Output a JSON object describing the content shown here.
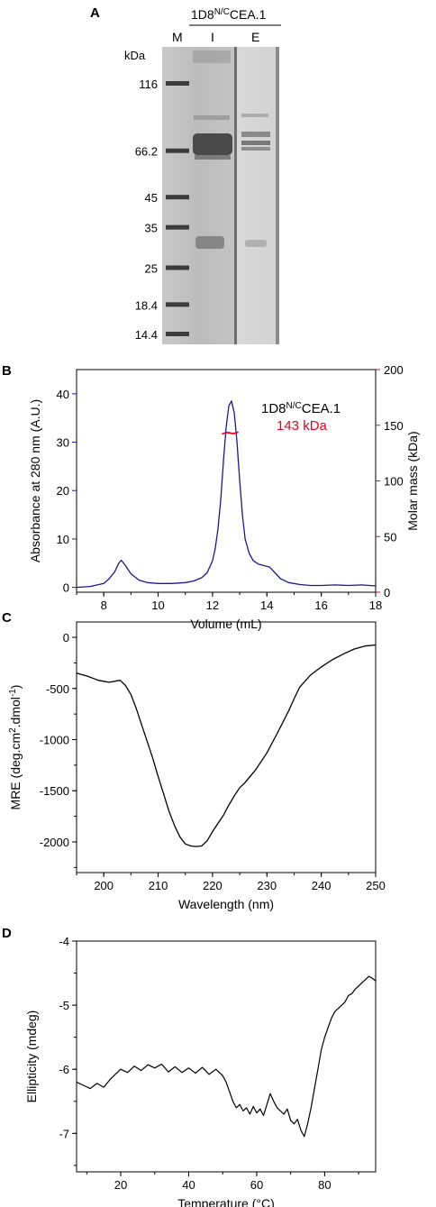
{
  "panel_labels": {
    "a": "A",
    "b": "B",
    "c": "C",
    "d": "D"
  },
  "gel": {
    "construct_name": "1D8",
    "construct_sup": "N/C",
    "construct_suffix": "CEA.1",
    "lane_labels": [
      "M",
      "I",
      "E"
    ],
    "kda_label": "kDa",
    "markers": [
      {
        "label": "116",
        "kda": 116
      },
      {
        "label": "66.2",
        "kda": 66.2
      },
      {
        "label": "45",
        "kda": 45
      },
      {
        "label": "35",
        "kda": 35
      },
      {
        "label": "25",
        "kda": 25
      },
      {
        "label": "18.4",
        "kda": 18.4
      },
      {
        "label": "14.4",
        "kda": 14.4
      }
    ]
  },
  "chart_data": [
    {
      "panel": "B",
      "type": "line",
      "xlabel": "Volume (mL)",
      "ylabel": "Absorbance at 280 nm (A.U.)",
      "y2label": "Molar mass (kDa)",
      "xlim": [
        7,
        18
      ],
      "ylim": [
        -1,
        45
      ],
      "y2lim": [
        0,
        200
      ],
      "x_ticks": [
        8,
        10,
        12,
        14,
        16,
        18
      ],
      "y_ticks": [
        0,
        10,
        20,
        30,
        40
      ],
      "y2_ticks": [
        0,
        50,
        100,
        150,
        200
      ],
      "colors": {
        "absorbance": "#1a1a8c",
        "molar_mass": "#e8001c"
      },
      "annotation_name": "1D8",
      "annotation_sup": "N/C",
      "annotation_suffix": "CEA.1",
      "annotation_mass": "143 kDa",
      "series": [
        {
          "axis": "left",
          "x": [
            7.0,
            7.5,
            8.0,
            8.2,
            8.4,
            8.55,
            8.65,
            8.8,
            9.0,
            9.3,
            9.6,
            10.0,
            10.5,
            11.0,
            11.3,
            11.6,
            11.8,
            12.0,
            12.1,
            12.2,
            12.3,
            12.4,
            12.5,
            12.6,
            12.7,
            12.8,
            12.9,
            13.0,
            13.1,
            13.2,
            13.35,
            13.5,
            13.7,
            13.9,
            14.1,
            14.3,
            14.5,
            14.8,
            15.2,
            15.6,
            16.0,
            16.5,
            17.0,
            17.5,
            18.0
          ],
          "values": [
            0.0,
            0.2,
            0.8,
            1.8,
            3.2,
            5.0,
            5.6,
            4.5,
            2.8,
            1.5,
            1.0,
            0.8,
            0.8,
            1.0,
            1.3,
            2.0,
            3.0,
            5.5,
            8.0,
            12.0,
            18.0,
            26.0,
            33.0,
            37.5,
            38.5,
            36.0,
            30.0,
            22.0,
            15.0,
            10.0,
            7.0,
            5.5,
            4.8,
            4.5,
            4.2,
            3.0,
            1.8,
            1.0,
            0.6,
            0.4,
            0.4,
            0.5,
            0.4,
            0.5,
            0.3
          ]
        },
        {
          "axis": "right",
          "x": [
            12.35,
            12.45,
            12.55,
            12.65,
            12.75,
            12.85,
            12.95
          ],
          "values": [
            142,
            143,
            143.5,
            143,
            142.5,
            143,
            144
          ]
        }
      ]
    },
    {
      "panel": "C",
      "type": "line",
      "xlabel": "Wavelength (nm)",
      "ylabel": "MRE (deg.cm",
      "ylabel_sup1": "2",
      "ylabel_mid": ".dmol",
      "ylabel_sup2": "-1",
      "ylabel_end": ")",
      "xlim": [
        195,
        250
      ],
      "ylim": [
        -2300,
        150
      ],
      "x_ticks": [
        200,
        210,
        220,
        230,
        240,
        250
      ],
      "y_ticks": [
        0,
        -500,
        -1000,
        -1500,
        -2000
      ],
      "series": [
        {
          "x": [
            195,
            197,
            199,
            201,
            203,
            204,
            205,
            206,
            207,
            208,
            209,
            210,
            211,
            212,
            213,
            214,
            215,
            216,
            217,
            218,
            219,
            220,
            221,
            222,
            223,
            224,
            225,
            226,
            228,
            230,
            232,
            234,
            235,
            236,
            238,
            240,
            242,
            244,
            246,
            248,
            250
          ],
          "values": [
            -350,
            -380,
            -420,
            -440,
            -420,
            -470,
            -560,
            -700,
            -860,
            -1020,
            -1180,
            -1360,
            -1530,
            -1700,
            -1840,
            -1950,
            -2020,
            -2040,
            -2045,
            -2040,
            -1990,
            -1900,
            -1820,
            -1740,
            -1640,
            -1550,
            -1470,
            -1420,
            -1290,
            -1130,
            -930,
            -720,
            -600,
            -490,
            -370,
            -290,
            -220,
            -165,
            -115,
            -85,
            -75
          ]
        }
      ]
    },
    {
      "panel": "D",
      "type": "line",
      "xlabel": "Temperature (°C)",
      "ylabel": "Ellipticity (mdeg)",
      "xlim": [
        7,
        95
      ],
      "ylim": [
        -7.6,
        -4.0
      ],
      "x_ticks": [
        20,
        40,
        60,
        80
      ],
      "y_ticks": [
        -4,
        -5,
        -6,
        -7
      ],
      "series": [
        {
          "x": [
            7,
            9,
            11,
            13,
            15,
            17,
            18,
            20,
            22,
            24,
            26,
            28,
            30,
            32,
            34,
            36,
            38,
            40,
            42,
            44,
            46,
            48,
            50,
            51,
            52,
            53,
            54,
            55,
            56,
            57,
            58,
            59,
            60,
            61,
            62,
            63,
            64,
            65,
            66,
            67,
            68,
            69,
            70,
            71,
            72,
            73,
            74,
            75,
            76,
            77,
            78,
            79,
            80,
            81,
            82,
            83,
            84,
            85,
            86,
            87,
            88,
            89,
            90,
            91,
            92,
            93,
            94,
            95
          ],
          "values": [
            -6.2,
            -6.25,
            -6.3,
            -6.22,
            -6.28,
            -6.15,
            -6.1,
            -6.0,
            -6.05,
            -5.95,
            -6.02,
            -5.93,
            -5.98,
            -5.92,
            -6.04,
            -5.96,
            -6.05,
            -5.98,
            -6.06,
            -5.97,
            -6.08,
            -6.0,
            -6.1,
            -6.2,
            -6.35,
            -6.5,
            -6.6,
            -6.55,
            -6.65,
            -6.6,
            -6.7,
            -6.58,
            -6.68,
            -6.62,
            -6.72,
            -6.55,
            -6.38,
            -6.5,
            -6.6,
            -6.65,
            -6.7,
            -6.62,
            -6.8,
            -6.85,
            -6.78,
            -6.95,
            -7.05,
            -6.85,
            -6.6,
            -6.3,
            -6.0,
            -5.7,
            -5.5,
            -5.35,
            -5.2,
            -5.1,
            -5.05,
            -5.0,
            -4.95,
            -4.85,
            -4.82,
            -4.75,
            -4.7,
            -4.65,
            -4.6,
            -4.55,
            -4.58,
            -4.62
          ]
        }
      ]
    }
  ]
}
